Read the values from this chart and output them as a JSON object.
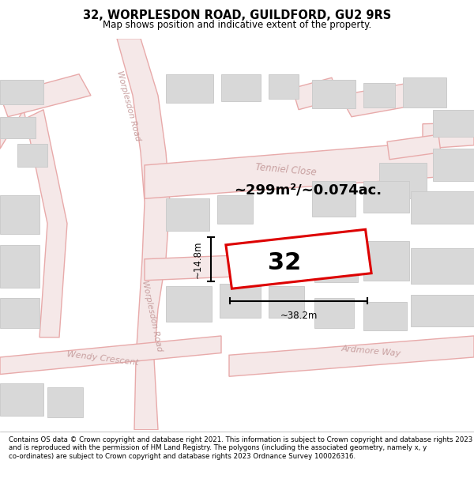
{
  "title": "32, WORPLESDON ROAD, GUILDFORD, GU2 9RS",
  "subtitle": "Map shows position and indicative extent of the property.",
  "footer": "Contains OS data © Crown copyright and database right 2021. This information is subject to Crown copyright and database rights 2023 and is reproduced with the permission of HM Land Registry. The polygons (including the associated geometry, namely x, y co-ordinates) are subject to Crown copyright and database rights 2023 Ordnance Survey 100026316.",
  "area_text": "~299m²/~0.074ac.",
  "property_number": "32",
  "width_label": "~38.2m",
  "height_label": "~14.8m",
  "map_bg": "#ffffff",
  "road_line_color": "#e8aaaa",
  "road_fill": "#f5e8e8",
  "plot_border_color": "#dd0000",
  "building_fill": "#d8d8d8",
  "building_stroke": "#cccccc",
  "road_label_color": "#c8a0a0",
  "title_fontsize": 10.5,
  "subtitle_fontsize": 8.5,
  "footer_fontsize": 6.2,
  "area_fontsize": 13,
  "number_fontsize": 22,
  "measure_fontsize": 8.5
}
